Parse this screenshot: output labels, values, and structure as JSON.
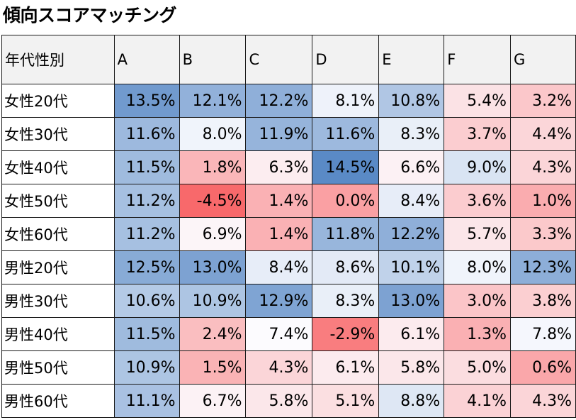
{
  "title": "傾向スコアマッチング",
  "chart_data": {
    "type": "heatmap",
    "title": "傾向スコアマッチング",
    "row_header": "年代性別",
    "columns": [
      "A",
      "B",
      "C",
      "D",
      "E",
      "F",
      "G"
    ],
    "rows": [
      "女性20代",
      "女性30代",
      "女性40代",
      "女性50代",
      "女性60代",
      "男性20代",
      "男性30代",
      "男性40代",
      "男性50代",
      "男性60代"
    ],
    "values": [
      [
        13.5,
        12.1,
        12.2,
        8.1,
        10.8,
        5.4,
        3.2
      ],
      [
        11.6,
        8.0,
        11.9,
        11.6,
        8.3,
        3.7,
        4.4
      ],
      [
        11.5,
        1.8,
        6.3,
        14.5,
        6.6,
        9.0,
        4.3
      ],
      [
        11.2,
        -4.5,
        1.4,
        0.0,
        8.4,
        3.6,
        1.0
      ],
      [
        11.2,
        6.9,
        1.4,
        11.8,
        12.2,
        5.7,
        3.3
      ],
      [
        12.5,
        13.0,
        8.4,
        8.6,
        10.1,
        8.0,
        12.3
      ],
      [
        10.6,
        10.9,
        12.9,
        8.3,
        13.0,
        3.0,
        3.8
      ],
      [
        11.5,
        2.4,
        7.4,
        -2.9,
        6.1,
        1.3,
        7.8
      ],
      [
        10.9,
        1.5,
        4.3,
        6.1,
        5.8,
        5.0,
        0.6
      ],
      [
        11.1,
        6.7,
        5.8,
        5.1,
        8.8,
        4.1,
        4.3
      ]
    ],
    "value_format": "percent_1dp",
    "color_scale": {
      "low_color": "#f8696b",
      "mid_color": "#fcfcff",
      "high_color": "#5a8ac6",
      "min": -4.5,
      "mid": 7.5,
      "max": 14.5
    }
  }
}
